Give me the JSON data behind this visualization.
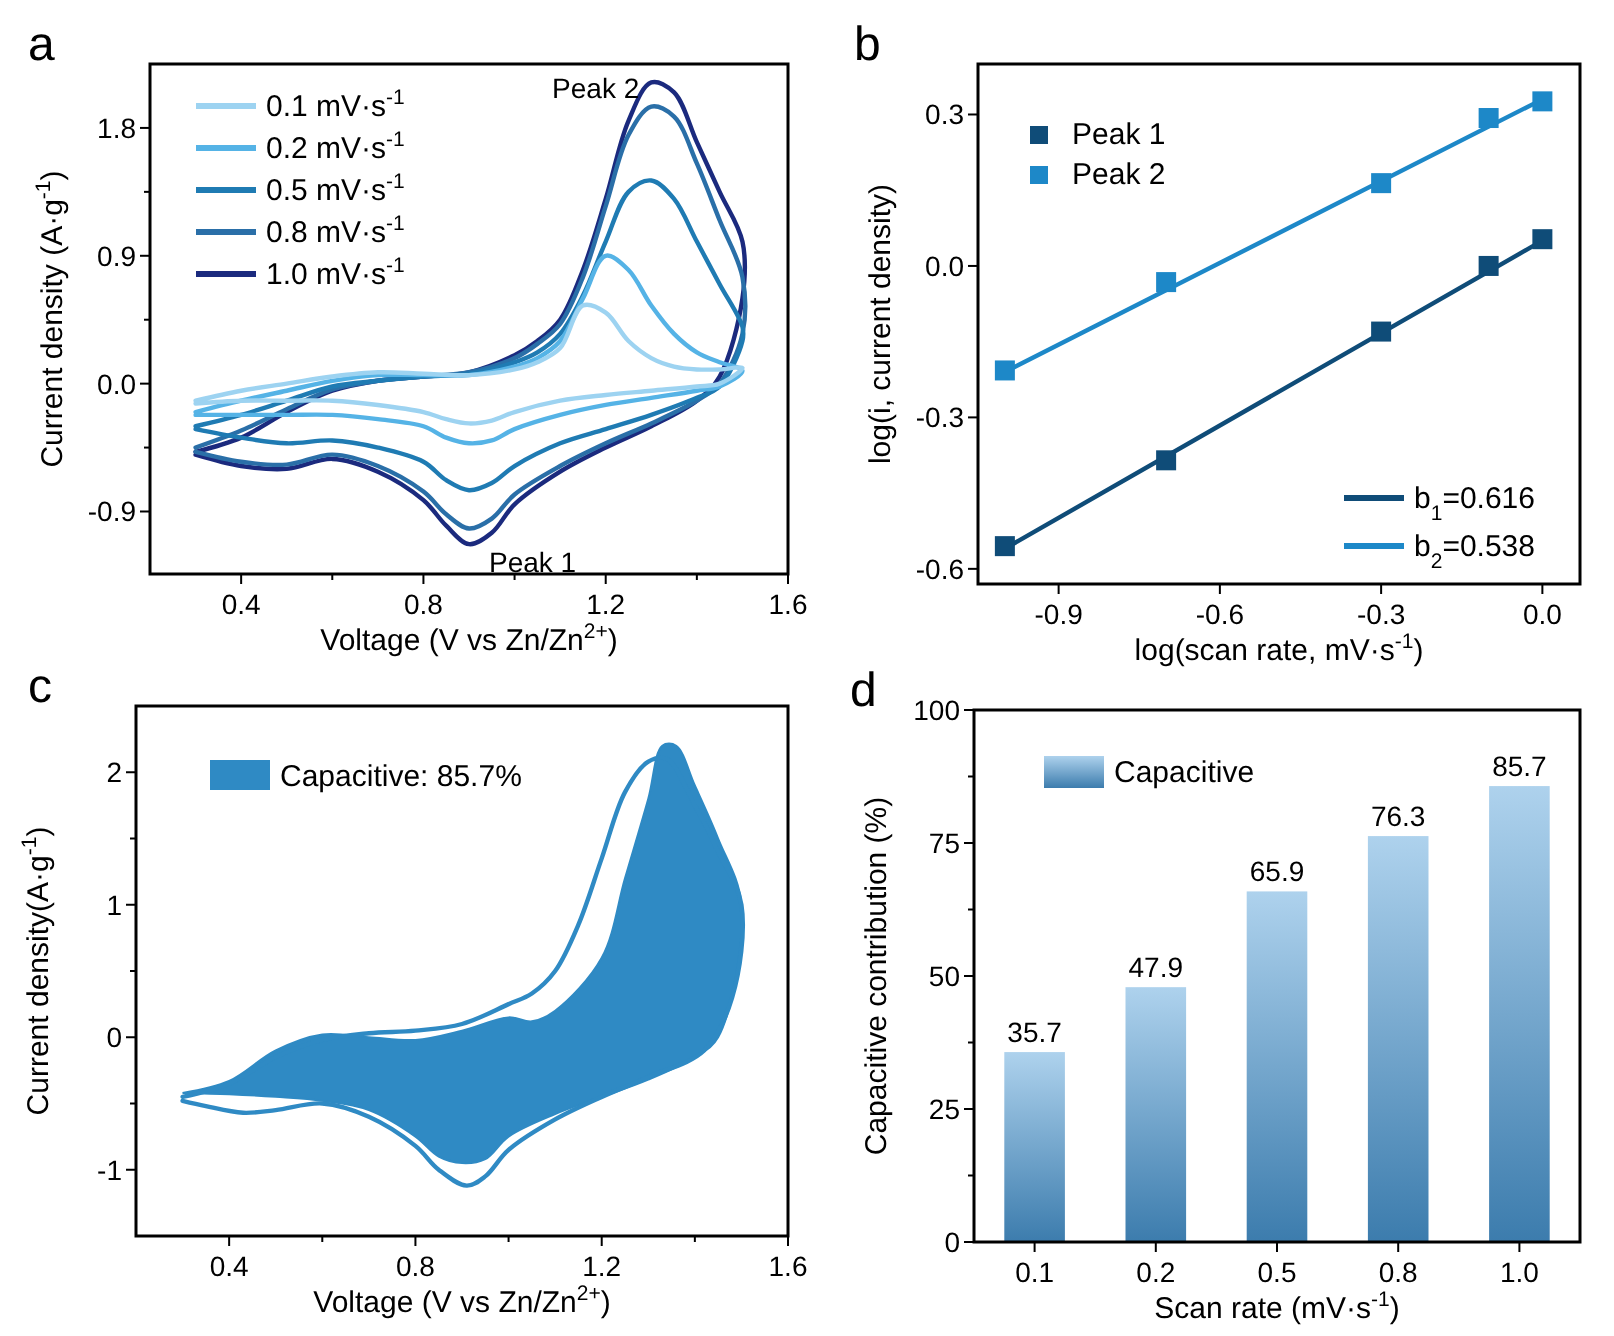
{
  "chart_data": [
    {
      "type": "line",
      "title": "a",
      "xlabel": "Voltage (V vs Zn/Zn$^{2+}$)",
      "ylabel": "Current density (A·g$^{-1}$)",
      "legend": "top left",
      "xlim": [
        0.2,
        1.6
      ],
      "xticks": [
        0.4,
        {
          "value": 0.6,
          "label": null
        },
        0.8,
        {
          "value": 1.0,
          "label": null
        },
        1.2,
        {
          "value": 1.4,
          "label": null
        },
        1.6
      ],
      "ylim": [
        -1.34,
        2.25
      ],
      "yticks": [
        {
          "value": -0.45,
          "label": null
        },
        -0.9,
        {
          "value": 0,
          "label": "0.0"
        },
        {
          "value": 0.45,
          "label": null
        },
        0.9,
        {
          "value": 1.35,
          "label": null
        },
        1.8
      ],
      "series": [
        {
          "name": "0.1 mV·s$^{-1}$",
          "color": "#9dd3f1",
          "x": [
            0.3,
            0.4,
            0.5,
            0.6,
            0.7,
            0.8,
            0.9,
            1.0,
            1.05,
            1.1,
            1.15,
            1.2,
            1.25,
            1.3,
            1.35,
            1.4,
            1.45,
            1.5,
            1.45,
            1.4,
            1.3,
            1.2,
            1.1,
            1.0,
            0.95,
            0.9,
            0.85,
            0.8,
            0.7,
            0.6,
            0.5,
            0.4,
            0.3
          ],
          "values": [
            -0.12,
            -0.05,
            0.0,
            0.05,
            0.08,
            0.07,
            0.06,
            0.1,
            0.15,
            0.25,
            0.55,
            0.5,
            0.3,
            0.18,
            0.12,
            0.1,
            0.1,
            0.11,
            0.0,
            -0.02,
            -0.05,
            -0.08,
            -0.12,
            -0.2,
            -0.26,
            -0.28,
            -0.25,
            -0.2,
            -0.15,
            -0.12,
            -0.12,
            -0.12,
            -0.14
          ]
        },
        {
          "name": "0.2 mV·s$^{-1}$",
          "color": "#55b3e6",
          "x": [
            0.3,
            0.4,
            0.5,
            0.6,
            0.7,
            0.8,
            0.9,
            1.0,
            1.05,
            1.1,
            1.15,
            1.2,
            1.25,
            1.3,
            1.35,
            1.4,
            1.45,
            1.5,
            1.45,
            1.4,
            1.3,
            1.2,
            1.1,
            1.0,
            0.95,
            0.9,
            0.85,
            0.8,
            0.7,
            0.6,
            0.5,
            0.4,
            0.3
          ],
          "values": [
            -0.2,
            -0.12,
            -0.05,
            0.02,
            0.06,
            0.06,
            0.06,
            0.12,
            0.18,
            0.3,
            0.6,
            0.9,
            0.8,
            0.55,
            0.35,
            0.22,
            0.15,
            0.09,
            -0.02,
            -0.05,
            -0.1,
            -0.15,
            -0.22,
            -0.32,
            -0.4,
            -0.42,
            -0.38,
            -0.3,
            -0.25,
            -0.22,
            -0.22,
            -0.22,
            -0.22
          ]
        },
        {
          "name": "0.5 mV·s$^{-1}$",
          "color": "#1f7bb3",
          "x": [
            0.3,
            0.4,
            0.5,
            0.6,
            0.7,
            0.8,
            0.9,
            1.0,
            1.05,
            1.1,
            1.15,
            1.2,
            1.25,
            1.3,
            1.35,
            1.4,
            1.45,
            1.5,
            1.5,
            1.45,
            1.4,
            1.3,
            1.2,
            1.1,
            1.0,
            0.95,
            0.9,
            0.85,
            0.8,
            0.7,
            0.6,
            0.5,
            0.4,
            0.3
          ],
          "values": [
            -0.3,
            -0.22,
            -0.12,
            -0.02,
            0.02,
            0.05,
            0.07,
            0.15,
            0.22,
            0.35,
            0.62,
            1.0,
            1.35,
            1.43,
            1.3,
            1.0,
            0.7,
            0.4,
            0.3,
            -0.02,
            -0.1,
            -0.22,
            -0.32,
            -0.42,
            -0.58,
            -0.7,
            -0.75,
            -0.68,
            -0.55,
            -0.45,
            -0.4,
            -0.42,
            -0.38,
            -0.32
          ]
        },
        {
          "name": "0.8 mV·s$^{-1}$",
          "color": "#2a6fa8",
          "x": [
            0.3,
            0.4,
            0.5,
            0.6,
            0.7,
            0.8,
            0.9,
            1.0,
            1.05,
            1.1,
            1.15,
            1.2,
            1.25,
            1.3,
            1.35,
            1.4,
            1.45,
            1.5,
            1.5,
            1.45,
            1.4,
            1.3,
            1.2,
            1.1,
            1.0,
            0.95,
            0.9,
            0.85,
            0.8,
            0.7,
            0.6,
            0.5,
            0.4,
            0.3
          ],
          "values": [
            -0.45,
            -0.33,
            -0.18,
            -0.04,
            0.02,
            0.05,
            0.08,
            0.18,
            0.28,
            0.42,
            0.75,
            1.25,
            1.75,
            1.95,
            1.88,
            1.55,
            1.15,
            0.75,
            0.35,
            0.0,
            -0.12,
            -0.28,
            -0.42,
            -0.58,
            -0.78,
            -0.95,
            -1.02,
            -0.92,
            -0.76,
            -0.58,
            -0.5,
            -0.57,
            -0.55,
            -0.48
          ]
        },
        {
          "name": "1.0 mV·s$^{-1}$",
          "color": "#1b2a7e",
          "x": [
            0.3,
            0.4,
            0.5,
            0.6,
            0.7,
            0.8,
            0.9,
            1.0,
            1.05,
            1.1,
            1.15,
            1.2,
            1.25,
            1.3,
            1.35,
            1.4,
            1.45,
            1.5,
            1.5,
            1.45,
            1.4,
            1.3,
            1.2,
            1.1,
            1.0,
            0.95,
            0.9,
            0.85,
            0.8,
            0.7,
            0.6,
            0.5,
            0.4,
            0.3
          ],
          "values": [
            -0.48,
            -0.38,
            -0.2,
            -0.05,
            0.02,
            0.05,
            0.08,
            0.2,
            0.3,
            0.45,
            0.8,
            1.3,
            1.85,
            2.12,
            2.05,
            1.7,
            1.35,
            1.0,
            0.6,
            0.05,
            -0.12,
            -0.3,
            -0.45,
            -0.62,
            -0.85,
            -1.05,
            -1.13,
            -1.0,
            -0.82,
            -0.62,
            -0.53,
            -0.6,
            -0.58,
            -0.5
          ]
        }
      ],
      "annotations": [
        {
          "text": "Peak 2",
          "x": 1.3,
          "y": 2.12
        },
        {
          "text": "Peak 1",
          "x": 0.9,
          "y": -1.13
        }
      ]
    },
    {
      "type": "scatter",
      "title": "b",
      "xlabel": "log(scan rate, mV·s$^{-1}$)",
      "ylabel": "log(i, current density)",
      "legend": "bottom right",
      "marker": "square",
      "xlim": [
        -1.05,
        0.07
      ],
      "xticks": [
        -0.9,
        -0.6,
        -0.3,
        {
          "value": 0,
          "label": "0.0"
        }
      ],
      "ylim": [
        -0.63,
        0.4
      ],
      "yticks": [
        -0.6,
        -0.3,
        {
          "value": 0,
          "label": "0.0"
        },
        0.3
      ],
      "x": [
        -1,
        -0.7,
        -0.3,
        -0.1,
        0
      ],
      "series": [
        {
          "name": "Peak 1",
          "color": "#0f4c78",
          "values": [
            -0.555,
            -0.385,
            -0.13,
            0.0,
            0.053
          ]
        },
        {
          "name": "Peak 2",
          "color": "#1d88c8",
          "values": [
            -0.207,
            -0.032,
            0.164,
            0.293,
            0.326
          ]
        },
        {
          "name": "b$_{1}$=0.616",
          "type": "line",
          "marker": "none",
          "color": "#0f4c78",
          "x": [
            -1,
            0
          ],
          "values": [
            -0.56,
            0.05
          ]
        },
        {
          "name": "b$_{2}$=0.538",
          "type": "line",
          "marker": "none",
          "color": "#1d88c8",
          "x": [
            -1,
            0
          ],
          "values": [
            -0.21,
            0.33
          ]
        }
      ]
    },
    {
      "type": "area",
      "title": "c",
      "xlabel": "Voltage (V vs Zn/Zn$^{2+}$)",
      "ylabel": "Current density(A·g$^{-1}$)",
      "legend": "top left",
      "xlim": [
        0.2,
        1.6
      ],
      "xticks": [
        0.4,
        {
          "value": 0.6,
          "label": null
        },
        0.8,
        {
          "value": 1.0,
          "label": null
        },
        1.2,
        {
          "value": 1.4,
          "label": null
        },
        1.6
      ],
      "ylim": [
        -1.5,
        2.5
      ],
      "yticks": [
        -1,
        {
          "value": -0.5,
          "label": null
        },
        0,
        {
          "value": 0.5,
          "label": null
        },
        1,
        {
          "value": 1.5,
          "label": null
        },
        2
      ],
      "series": [
        {
          "name": "Capacitive: 85.7%",
          "color": "#2f8ac4",
          "x": [
            0.3,
            0.4,
            0.5,
            0.6,
            0.7,
            0.8,
            0.9,
            1.0,
            1.05,
            1.1,
            1.2,
            1.25,
            1.3,
            1.33,
            1.36,
            1.4,
            1.45,
            1.5,
            1.45,
            1.4,
            1.3,
            1.2,
            1.1,
            1.0,
            0.95,
            0.9,
            0.85,
            0.8,
            0.7,
            0.6,
            0.5,
            0.4,
            0.3
          ],
          "values": [
            -0.42,
            -0.33,
            -0.1,
            0.02,
            0.0,
            -0.02,
            0.05,
            0.15,
            0.12,
            0.2,
            0.6,
            1.2,
            1.8,
            2.2,
            2.2,
            1.9,
            1.5,
            1.0,
            0.0,
            -0.15,
            -0.32,
            -0.45,
            -0.58,
            -0.75,
            -0.92,
            -0.95,
            -0.9,
            -0.75,
            -0.55,
            -0.48,
            -0.45,
            -0.43,
            -0.42
          ]
        },
        {
          "type": "line",
          "color": "#2f8ac4",
          "x": [
            0.3,
            0.4,
            0.5,
            0.6,
            0.7,
            0.8,
            0.9,
            1.0,
            1.05,
            1.1,
            1.15,
            1.2,
            1.25,
            1.3,
            1.34,
            1.4,
            1.45,
            1.5,
            1.48,
            1.42,
            1.3,
            1.2,
            1.1,
            1.0,
            0.95,
            0.91,
            0.85,
            0.8,
            0.7,
            0.6,
            0.5,
            0.43,
            0.35,
            0.3
          ],
          "values": [
            -0.45,
            -0.35,
            -0.15,
            -0.02,
            0.03,
            0.05,
            0.1,
            0.25,
            0.33,
            0.5,
            0.85,
            1.35,
            1.85,
            2.08,
            2.1,
            1.75,
            1.4,
            1.0,
            0.3,
            -0.1,
            -0.3,
            -0.45,
            -0.62,
            -0.85,
            -1.05,
            -1.12,
            -1.0,
            -0.82,
            -0.6,
            -0.5,
            -0.55,
            -0.57,
            -0.52,
            -0.48
          ]
        }
      ]
    },
    {
      "type": "bar",
      "title": "d",
      "xlabel": "Scan rate (mV·s$^{-1}$)",
      "ylabel": "Capacitive contribution (%)",
      "legend": "top left",
      "data_labels": true,
      "categories": [
        "0.1",
        "0.2",
        "0.5",
        "0.8",
        "1.0"
      ],
      "ylim": [
        0,
        100
      ],
      "yticks": [
        0,
        {
          "value": 12.5,
          "label": null
        },
        25,
        {
          "value": 37.5,
          "label": null
        },
        50,
        {
          "value": 62.5,
          "label": null
        },
        75,
        {
          "value": 87.5,
          "label": null
        },
        100
      ],
      "series": [
        {
          "name": "Capacitive",
          "color": "#4a9ad6",
          "values": [
            35.7,
            47.9,
            65.9,
            76.3,
            85.7
          ]
        }
      ]
    }
  ]
}
